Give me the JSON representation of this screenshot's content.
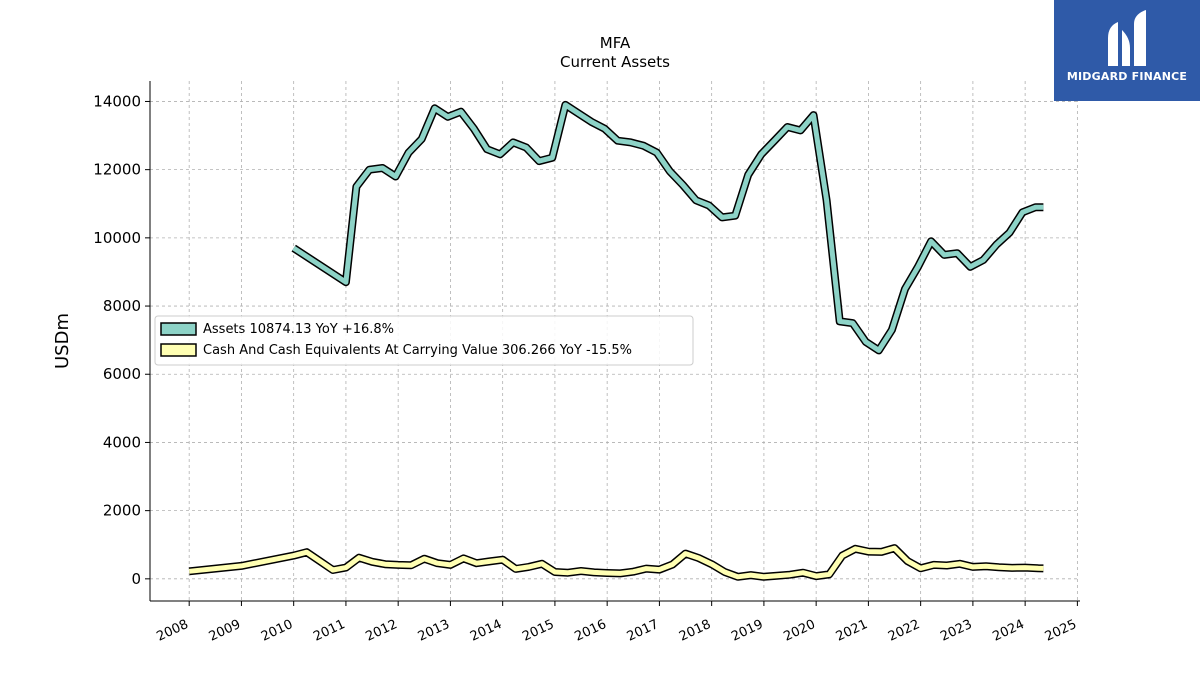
{
  "header": {
    "title": "MFA",
    "subtitle": "Current  Assets"
  },
  "brand": {
    "name": "MIDGARD FINANCE",
    "color": "#2f5aa8"
  },
  "chart_data": {
    "type": "line",
    "ylabel": "USDm",
    "xlim": [
      2007.25,
      2025.05
    ],
    "ylim": [
      -650,
      14600
    ],
    "yticks": [
      0,
      2000,
      4000,
      6000,
      8000,
      10000,
      12000,
      14000
    ],
    "xticks": [
      2008,
      2009,
      2010,
      2011,
      2012,
      2013,
      2014,
      2015,
      2016,
      2017,
      2018,
      2019,
      2020,
      2021,
      2022,
      2023,
      2024,
      2025
    ],
    "grid": true,
    "legend_position": "center-left",
    "series": [
      {
        "name": "Assets",
        "legend_label": "Assets  10874.13 YoY +16.8%",
        "color": "#8dd3c7",
        "x": [
          2010.0,
          2011.0,
          2011.2,
          2011.45,
          2011.7,
          2011.95,
          2012.2,
          2012.45,
          2012.7,
          2012.95,
          2013.2,
          2013.45,
          2013.7,
          2013.95,
          2014.2,
          2014.45,
          2014.7,
          2014.95,
          2015.2,
          2015.45,
          2015.7,
          2015.95,
          2016.2,
          2016.45,
          2016.7,
          2016.95,
          2017.2,
          2017.45,
          2017.7,
          2017.95,
          2018.2,
          2018.45,
          2018.7,
          2018.95,
          2019.2,
          2019.45,
          2019.7,
          2019.95,
          2020.2,
          2020.45,
          2020.7,
          2020.95,
          2021.2,
          2021.45,
          2021.7,
          2021.95,
          2022.2,
          2022.45,
          2022.7,
          2022.95,
          2023.2,
          2023.45,
          2023.7,
          2023.95,
          2024.2,
          2024.35
        ],
        "y": [
          9700,
          8700,
          11500,
          12000,
          12050,
          11800,
          12500,
          12900,
          13800,
          13550,
          13700,
          13200,
          12600,
          12450,
          12800,
          12650,
          12250,
          12350,
          13900,
          13650,
          13400,
          13200,
          12850,
          12800,
          12700,
          12500,
          11950,
          11550,
          11100,
          10950,
          10600,
          10650,
          11850,
          12450,
          12850,
          13250,
          13150,
          13600,
          11100,
          7550,
          7500,
          6950,
          6700,
          7300,
          8500,
          9150,
          9900,
          9500,
          9550,
          9150,
          9350,
          9800,
          10150,
          10750,
          10900,
          10900
        ]
      },
      {
        "name": "Cash And Cash Equivalents At Carrying Value",
        "legend_label": "Cash And Cash Equivalents At Carrying Value  306.266 YoY -15.5%",
        "color": "#ffffb3",
        "x": [
          2008.0,
          2009.0,
          2010.0,
          2010.25,
          2010.5,
          2010.75,
          2011.0,
          2011.25,
          2011.5,
          2011.75,
          2012.0,
          2012.25,
          2012.5,
          2012.75,
          2013.0,
          2013.25,
          2013.5,
          2013.75,
          2014.0,
          2014.25,
          2014.5,
          2014.75,
          2015.0,
          2015.25,
          2015.5,
          2015.75,
          2016.0,
          2016.25,
          2016.5,
          2016.75,
          2017.0,
          2017.25,
          2017.5,
          2017.75,
          2018.0,
          2018.25,
          2018.5,
          2018.75,
          2019.0,
          2019.25,
          2019.5,
          2019.75,
          2020.0,
          2020.25,
          2020.5,
          2020.75,
          2021.0,
          2021.25,
          2021.5,
          2021.75,
          2022.0,
          2022.25,
          2022.5,
          2022.75,
          2023.0,
          2023.25,
          2023.5,
          2023.75,
          2024.0,
          2024.25,
          2024.35
        ],
        "y": [
          220,
          380,
          680,
          780,
          520,
          260,
          330,
          620,
          500,
          430,
          410,
          400,
          590,
          460,
          410,
          600,
          460,
          510,
          560,
          290,
          350,
          440,
          200,
          180,
          230,
          190,
          170,
          160,
          210,
          300,
          270,
          420,
          740,
          610,
          430,
          200,
          60,
          110,
          60,
          90,
          120,
          180,
          80,
          130,
          680,
          880,
          800,
          790,
          900,
          520,
          310,
          410,
          390,
          440,
          350,
          370,
          340,
          320,
          330,
          310,
          306
        ]
      }
    ]
  }
}
